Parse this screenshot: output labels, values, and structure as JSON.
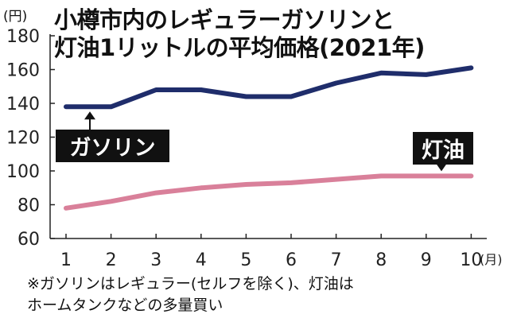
{
  "title_lines": [
    "小樽市内のレギュラーガソリンと",
    "灯油1リットルの平均価格(2021年)"
  ],
  "y_unit_label": "(円)",
  "x_unit_label": "(月)",
  "footnote_lines": [
    "※ガソリンはレギュラー(セルフを除く)、灯油は",
    "ホームタンクなどの多量買い"
  ],
  "colors": {
    "gasoline": "#1f2d6b",
    "kerosene": "#d9809a",
    "axis": "#222222",
    "label_box": "#111111",
    "label_text": "#ffffff"
  },
  "chart_data": {
    "type": "line",
    "x": [
      1,
      2,
      3,
      4,
      5,
      6,
      7,
      8,
      9,
      10
    ],
    "x_ticks": [
      "1",
      "2",
      "3",
      "4",
      "5",
      "6",
      "7",
      "8",
      "9",
      "10"
    ],
    "ylim": [
      60,
      180
    ],
    "y_ticks": [
      60,
      80,
      100,
      120,
      140,
      160,
      180
    ],
    "grid": false,
    "series": [
      {
        "name": "ガソリン",
        "values": [
          138,
          138,
          148,
          148,
          144,
          144,
          152,
          158,
          157,
          161
        ]
      },
      {
        "name": "灯油",
        "values": [
          78,
          82,
          87,
          90,
          92,
          93,
          95,
          97,
          97,
          97
        ]
      }
    ]
  }
}
